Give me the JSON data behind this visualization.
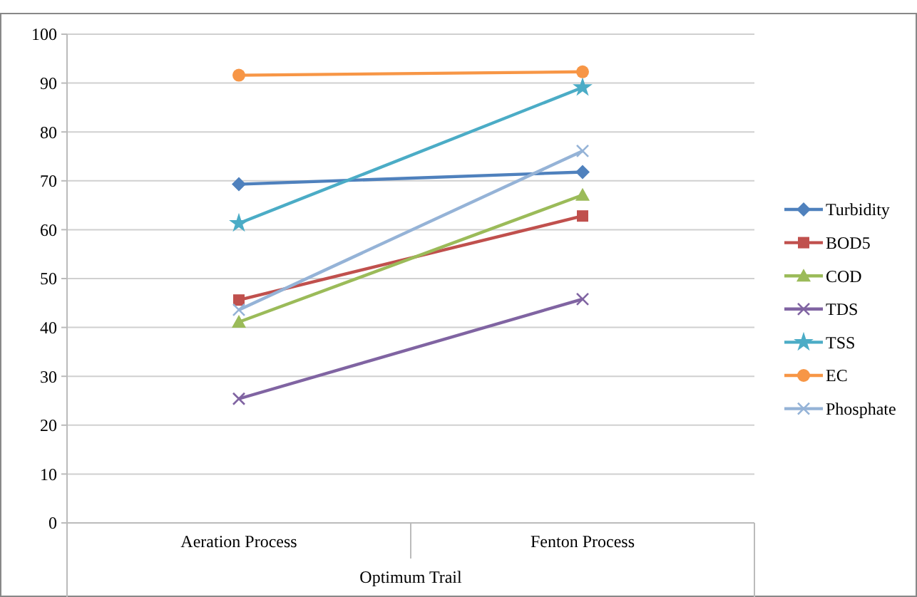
{
  "chart_data": {
    "type": "line",
    "xlabel": "Optimum Trail",
    "categories": [
      "Aeration Process",
      "Fenton Process"
    ],
    "series": [
      {
        "name": "Turbidity",
        "color": "#4f81bd",
        "marker": "diamond",
        "values": [
          69.3,
          71.8
        ]
      },
      {
        "name": "BOD5",
        "color": "#c0504d",
        "marker": "square",
        "values": [
          45.6,
          62.8
        ]
      },
      {
        "name": "COD",
        "color": "#9bbb59",
        "marker": "triangle",
        "values": [
          41.1,
          67.1
        ]
      },
      {
        "name": "TDS",
        "color": "#8064a2",
        "marker": "cross",
        "values": [
          25.4,
          45.8
        ]
      },
      {
        "name": "TSS",
        "color": "#4bacc6",
        "marker": "star",
        "values": [
          61.3,
          89.1
        ]
      },
      {
        "name": "EC",
        "color": "#f79646",
        "marker": "circle",
        "values": [
          91.6,
          92.3
        ]
      },
      {
        "name": "Phosphate",
        "color": "#95b3d7",
        "marker": "cross",
        "values": [
          43.6,
          76.1
        ]
      }
    ],
    "ylim": [
      0,
      100
    ],
    "yticks": [
      0,
      10,
      20,
      30,
      40,
      50,
      60,
      70,
      80,
      90,
      100
    ],
    "grid": "y",
    "legend": "right"
  }
}
